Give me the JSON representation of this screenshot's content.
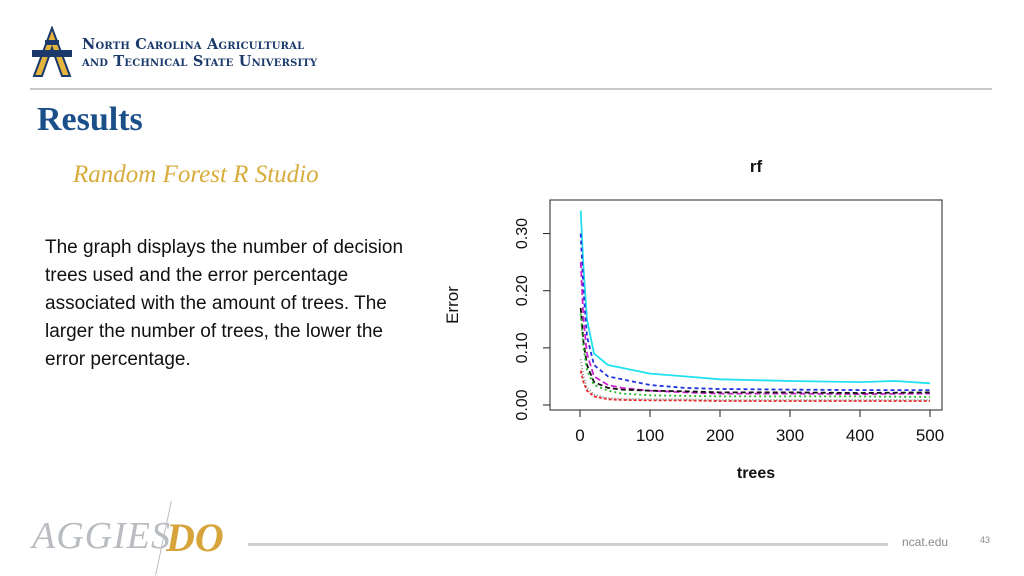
{
  "header": {
    "university_line1": "North Carolina Agricultural",
    "university_line2": "and Technical State University"
  },
  "slide": {
    "title": "Results",
    "subtitle": "Random Forest R Studio",
    "body": "The graph displays the number of decision trees used and the error percentage associated with the amount of trees. The larger the number of trees, the lower the error percentage."
  },
  "footer": {
    "brand_left": "AGGIES",
    "brand_right": "DO",
    "site": "ncat.edu",
    "page_number": "43"
  },
  "colors": {
    "navy": "#1b3a6b",
    "title_blue": "#1b4f8a",
    "gold": "#d8ac3c"
  },
  "chart_data": {
    "type": "line",
    "title": "rf",
    "xlabel": "trees",
    "ylabel": "Error",
    "xlim": [
      0,
      500
    ],
    "ylim": [
      0,
      0.35
    ],
    "xticks": [
      "0",
      "100",
      "200",
      "300",
      "400",
      "500"
    ],
    "yticks": [
      "0.00",
      "0.10",
      "0.20",
      "0.30"
    ],
    "series": [
      {
        "name": "s1",
        "color": "#22e0f0",
        "dash": "",
        "x": [
          1,
          5,
          10,
          20,
          40,
          60,
          100,
          150,
          200,
          300,
          400,
          450,
          500
        ],
        "y": [
          0.34,
          0.24,
          0.15,
          0.09,
          0.07,
          0.065,
          0.055,
          0.05,
          0.045,
          0.042,
          0.04,
          0.042,
          0.038
        ]
      },
      {
        "name": "s2",
        "color": "#2233dd",
        "dash": "4,3",
        "x": [
          1,
          5,
          10,
          20,
          40,
          60,
          100,
          150,
          200,
          300,
          400,
          500
        ],
        "y": [
          0.3,
          0.2,
          0.12,
          0.07,
          0.05,
          0.045,
          0.035,
          0.03,
          0.028,
          0.027,
          0.026,
          0.026
        ]
      },
      {
        "name": "s3",
        "color": "#cc22cc",
        "dash": "6,3",
        "x": [
          1,
          5,
          10,
          20,
          40,
          60,
          100,
          150,
          200,
          300,
          400,
          500
        ],
        "y": [
          0.25,
          0.15,
          0.09,
          0.05,
          0.035,
          0.03,
          0.025,
          0.022,
          0.02,
          0.02,
          0.019,
          0.02
        ]
      },
      {
        "name": "s4",
        "color": "#111111",
        "dash": "5,3",
        "x": [
          1,
          5,
          10,
          20,
          40,
          60,
          100,
          150,
          200,
          300,
          400,
          500
        ],
        "y": [
          0.17,
          0.11,
          0.07,
          0.04,
          0.03,
          0.027,
          0.025,
          0.024,
          0.022,
          0.022,
          0.021,
          0.022
        ]
      },
      {
        "name": "s5",
        "color": "#22bb22",
        "dash": "2,3",
        "x": [
          1,
          5,
          10,
          20,
          40,
          60,
          100,
          150,
          200,
          300,
          400,
          500
        ],
        "y": [
          0.16,
          0.1,
          0.06,
          0.035,
          0.025,
          0.02,
          0.017,
          0.016,
          0.015,
          0.015,
          0.015,
          0.014
        ]
      },
      {
        "name": "s6",
        "color": "#ee2222",
        "dash": "3,2",
        "x": [
          1,
          5,
          10,
          20,
          40,
          60,
          100,
          150,
          200,
          300,
          400,
          500
        ],
        "y": [
          0.06,
          0.04,
          0.025,
          0.015,
          0.01,
          0.009,
          0.008,
          0.008,
          0.007,
          0.007,
          0.007,
          0.007
        ]
      },
      {
        "name": "s7",
        "color": "#888888",
        "dash": "1,2",
        "x": [
          1,
          5,
          10,
          20,
          40,
          60,
          100,
          150,
          200,
          300,
          400,
          500
        ],
        "y": [
          0.08,
          0.05,
          0.03,
          0.018,
          0.012,
          0.011,
          0.01,
          0.01,
          0.009,
          0.009,
          0.009,
          0.009
        ]
      }
    ]
  }
}
